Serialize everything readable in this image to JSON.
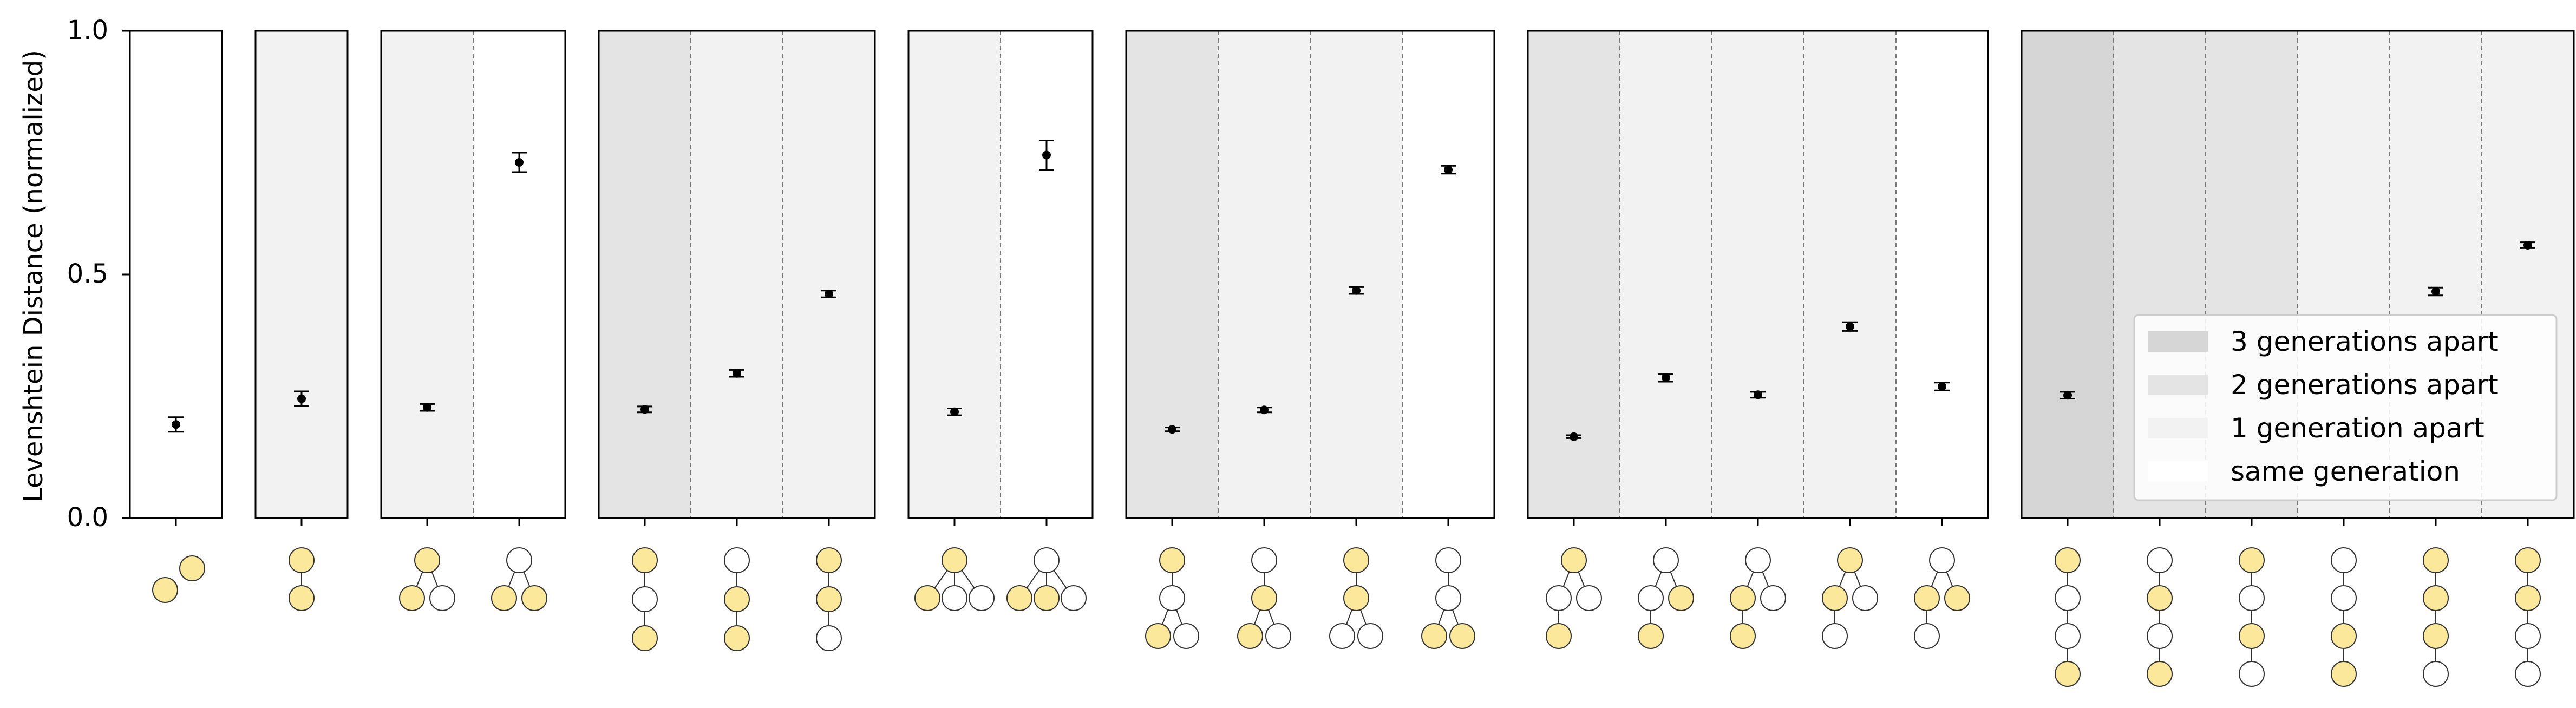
{
  "chart_data": {
    "type": "scatter",
    "title": "",
    "ylabel": "Levenshtein Distance (normalized)",
    "xlabel": "",
    "ylim": [
      0.0,
      1.0
    ],
    "yticks": [
      "0.0",
      "0.5",
      "1.0"
    ],
    "grid": false,
    "legend_position": "lower-right of last panel",
    "shade_colors": {
      "3 generations apart": "#d6d6d6",
      "2 generations apart": "#e4e4e4",
      "1 generation apart": "#f2f2f2",
      "same generation": "#ffffff"
    },
    "node_colors": {
      "highlighted": "#fbe89a",
      "plain": "#ffffff",
      "stroke": "#333333"
    },
    "legend": [
      {
        "label": "3 generations apart",
        "gen": 3
      },
      {
        "label": "2 generations apart",
        "gen": 2
      },
      {
        "label": "1 generation apart",
        "gen": 1
      },
      {
        "label": "same generation",
        "gen": 0
      }
    ],
    "panels": [
      {
        "points": [
          {
            "gen": 0,
            "y": 0.192,
            "err": 0.015,
            "tree": "pair"
          }
        ]
      },
      {
        "points": [
          {
            "gen": 1,
            "y": 0.245,
            "err": 0.015,
            "tree": "pair-vertical"
          }
        ]
      },
      {
        "points": [
          {
            "gen": 1,
            "y": 0.227,
            "err": 0.007,
            "tree": "fork-parent-left"
          },
          {
            "gen": 0,
            "y": 0.73,
            "err": 0.02,
            "tree": "fork-children"
          }
        ]
      },
      {
        "points": [
          {
            "gen": 2,
            "y": 0.223,
            "err": 0.006,
            "tree": "chain3-ends"
          },
          {
            "gen": 1,
            "y": 0.297,
            "err": 0.007,
            "tree": "chain3-middle-bottom"
          },
          {
            "gen": 1,
            "y": 0.46,
            "err": 0.007,
            "tree": "chain3-top-middle"
          }
        ]
      },
      {
        "points": [
          {
            "gen": 1,
            "y": 0.218,
            "err": 0.007,
            "tree": "fork3-parent-left"
          },
          {
            "gen": 0,
            "y": 0.745,
            "err": 0.03,
            "tree": "fork3-children"
          }
        ]
      },
      {
        "points": [
          {
            "gen": 2,
            "y": 0.182,
            "err": 0.004,
            "tree": "t4-top-left"
          },
          {
            "gen": 1,
            "y": 0.222,
            "err": 0.005,
            "tree": "t4-mid-left"
          },
          {
            "gen": 1,
            "y": 0.467,
            "err": 0.007,
            "tree": "t4-top-mid"
          },
          {
            "gen": 0,
            "y": 0.715,
            "err": 0.008,
            "tree": "t4-bottom-pair"
          }
        ]
      },
      {
        "points": [
          {
            "gen": 2,
            "y": 0.167,
            "err": 0.003,
            "tree": "t5-a"
          },
          {
            "gen": 1,
            "y": 0.288,
            "err": 0.008,
            "tree": "t5-b"
          },
          {
            "gen": 1,
            "y": 0.253,
            "err": 0.006,
            "tree": "t5-c"
          },
          {
            "gen": 1,
            "y": 0.393,
            "err": 0.009,
            "tree": "t5-d"
          },
          {
            "gen": 0,
            "y": 0.27,
            "err": 0.008,
            "tree": "t5-e"
          }
        ]
      },
      {
        "points": [
          {
            "gen": 3,
            "y": 0.252,
            "err": 0.007,
            "tree": "chain4-a"
          },
          {
            "gen": 2,
            "y": null,
            "err": null,
            "tree": "chain4-b"
          },
          {
            "gen": 2,
            "y": null,
            "err": null,
            "tree": "chain4-c"
          },
          {
            "gen": 1,
            "y": null,
            "err": null,
            "tree": "chain4-d"
          },
          {
            "gen": 1,
            "y": 0.465,
            "err": 0.008,
            "tree": "chain4-e"
          },
          {
            "gen": 1,
            "y": 0.56,
            "err": 0.006,
            "tree": "chain4-f"
          }
        ]
      }
    ]
  }
}
